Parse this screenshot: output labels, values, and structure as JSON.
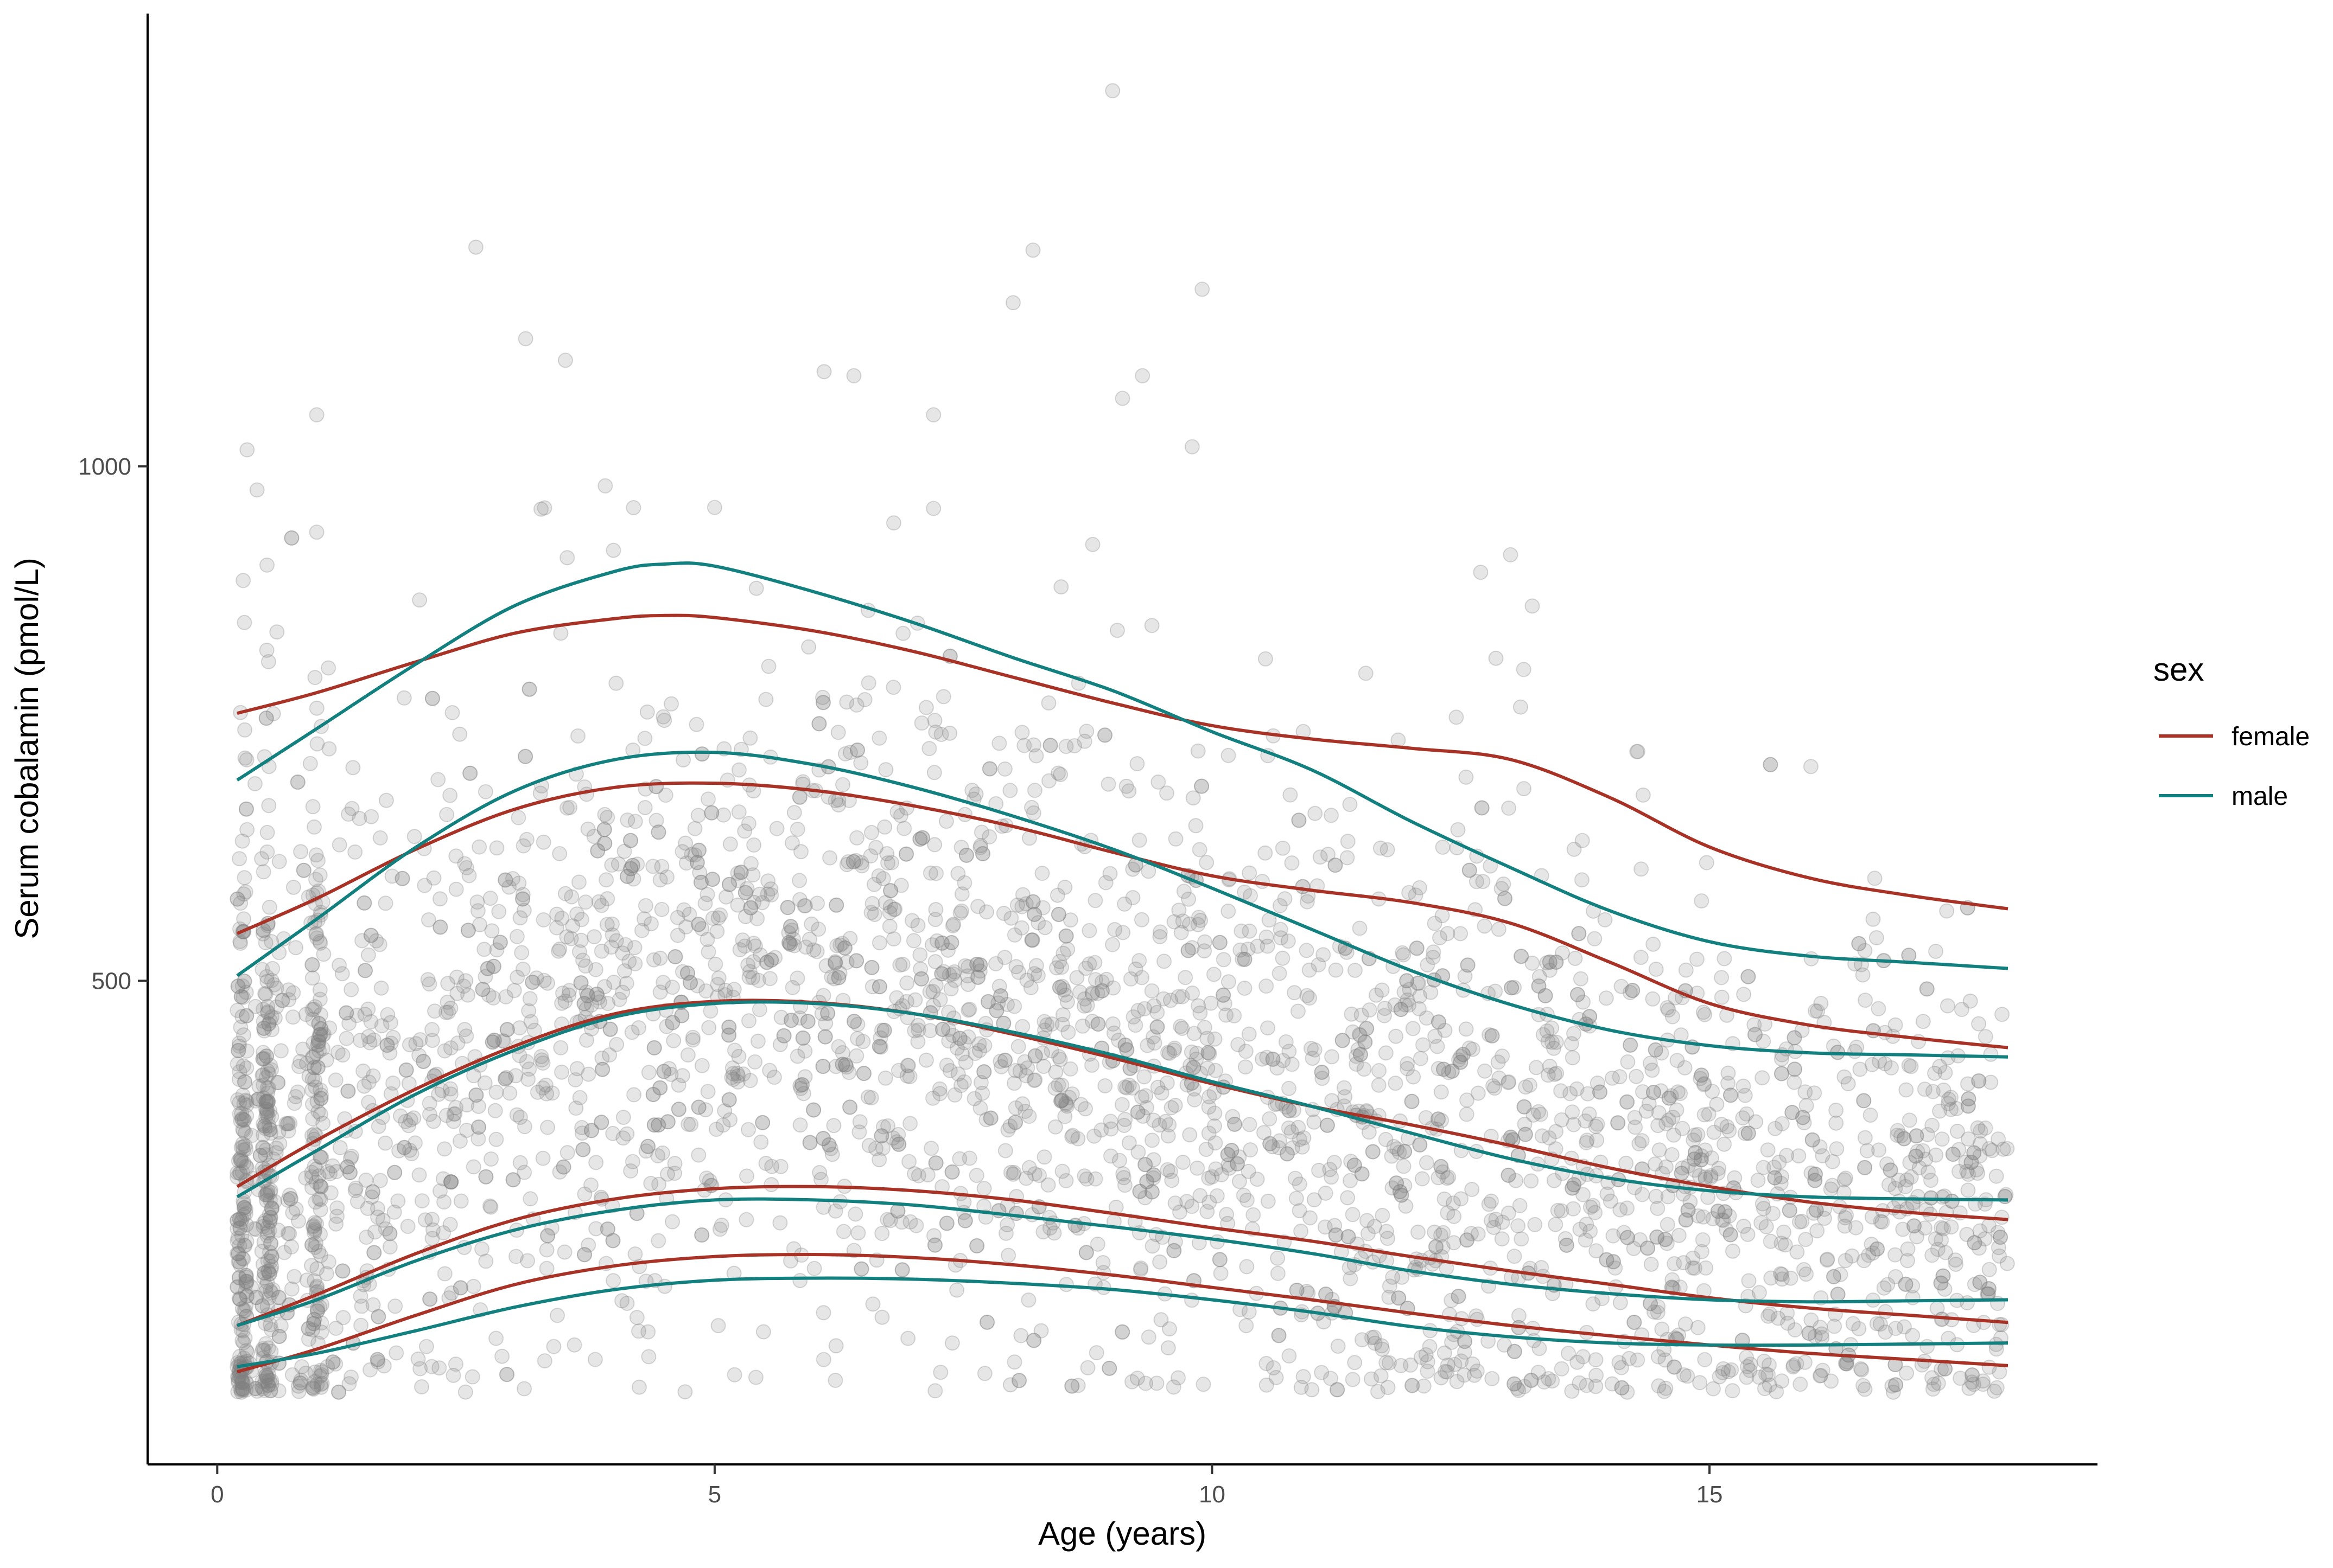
{
  "chart_data": {
    "type": "scatter",
    "xlabel": "Age (years)",
    "ylabel": "Serum cobalamin (pmol/L)",
    "xlim": [
      -0.7,
      18.9
    ],
    "ylim": [
      30,
      1440
    ],
    "x_ticks": [
      0,
      5,
      10,
      15
    ],
    "y_ticks": [
      500,
      1000
    ],
    "grid": false,
    "legend": {
      "title": "sex",
      "placement": "right",
      "entries": [
        {
          "label": "female",
          "color": "#a93226"
        },
        {
          "label": "male",
          "color": "#138080"
        }
      ]
    },
    "points_style": {
      "color": "#808080",
      "opacity": 0.2
    },
    "scatter_summary": {
      "n_points_approx": 3800,
      "x_range": [
        0.2,
        18.0
      ],
      "note": "dense point cloud; outliers listed individually"
    },
    "outlier_points": [
      [
        9.0,
        1365
      ],
      [
        2.6,
        1213
      ],
      [
        8.2,
        1210
      ],
      [
        8.0,
        1159
      ],
      [
        9.9,
        1172
      ],
      [
        3.1,
        1124
      ],
      [
        3.5,
        1103
      ],
      [
        6.1,
        1092
      ],
      [
        6.4,
        1088
      ],
      [
        9.3,
        1088
      ],
      [
        9.1,
        1066
      ],
      [
        7.2,
        1050
      ],
      [
        0.3,
        1016
      ],
      [
        1.0,
        1050
      ],
      [
        9.8,
        1019
      ],
      [
        0.4,
        977
      ],
      [
        3.9,
        981
      ],
      [
        0.5,
        904
      ],
      [
        0.6,
        839
      ],
      [
        1.0,
        936
      ],
      [
        5.0,
        960
      ],
      [
        6.8,
        945
      ],
      [
        7.2,
        959
      ],
      [
        8.8,
        924
      ],
      [
        13.0,
        914
      ],
      [
        12.7,
        897
      ]
    ],
    "series": [
      {
        "name": "female",
        "curve": "97.5th",
        "color": "#a93226",
        "x": [
          0.2,
          1,
          2,
          3,
          4,
          4.5,
          5,
          6,
          7,
          8,
          9,
          10,
          11,
          12,
          13,
          14,
          15,
          16,
          17,
          18
        ],
        "y": [
          760,
          780,
          810,
          838,
          852,
          855,
          853,
          840,
          820,
          795,
          770,
          748,
          735,
          726,
          715,
          678,
          630,
          600,
          583,
          570
        ]
      },
      {
        "name": "female",
        "curve": "90th",
        "color": "#a93226",
        "x": [
          0.2,
          1,
          2,
          3,
          4,
          5,
          6,
          7,
          8,
          9,
          10,
          11,
          12,
          13,
          14,
          15,
          16,
          17,
          18
        ],
        "y": [
          546,
          580,
          628,
          667,
          688,
          692,
          685,
          670,
          650,
          625,
          602,
          588,
          576,
          556,
          518,
          478,
          457,
          445,
          435
        ]
      },
      {
        "name": "female",
        "curve": "50th",
        "color": "#a93226",
        "x": [
          0.2,
          1,
          2,
          3,
          4,
          5,
          6,
          7,
          8,
          9,
          10,
          11,
          12,
          13,
          14,
          15,
          16,
          17,
          18
        ],
        "y": [
          300,
          345,
          395,
          437,
          468,
          480,
          479,
          468,
          448,
          425,
          400,
          378,
          360,
          340,
          318,
          300,
          285,
          275,
          268
        ]
      },
      {
        "name": "female",
        "curve": "10th",
        "color": "#a93226",
        "x": [
          0.2,
          1,
          2,
          3,
          4,
          5,
          6,
          7,
          8,
          9,
          10,
          11,
          12,
          13,
          14,
          15,
          16,
          17,
          18
        ],
        "y": [
          165,
          195,
          235,
          268,
          288,
          298,
          300,
          296,
          287,
          274,
          260,
          247,
          232,
          218,
          205,
          192,
          182,
          175,
          168
        ]
      },
      {
        "name": "female",
        "curve": "2.5th",
        "color": "#a93226",
        "x": [
          0.2,
          1,
          2,
          3,
          4,
          5,
          6,
          7,
          8,
          9,
          10,
          11,
          12,
          13,
          14,
          15,
          16,
          17,
          18
        ],
        "y": [
          120,
          142,
          175,
          205,
          223,
          232,
          234,
          231,
          224,
          214,
          202,
          190,
          177,
          165,
          155,
          146,
          138,
          132,
          126
        ]
      },
      {
        "name": "male",
        "curve": "97.5th",
        "color": "#138080",
        "x": [
          0.2,
          1,
          2,
          3,
          4,
          4.5,
          5,
          6,
          7,
          8,
          9,
          10,
          11,
          12,
          13,
          14,
          15,
          16,
          17,
          18
        ],
        "y": [
          695,
          745,
          808,
          865,
          898,
          905,
          903,
          878,
          848,
          814,
          782,
          742,
          705,
          655,
          610,
          568,
          538,
          524,
          518,
          512
        ]
      },
      {
        "name": "male",
        "curve": "90th",
        "color": "#138080",
        "x": [
          0.2,
          1,
          2,
          3,
          4,
          5,
          6,
          7,
          8,
          9,
          10,
          11,
          12,
          13,
          14,
          15,
          16,
          17,
          18
        ],
        "y": [
          505,
          560,
          630,
          685,
          715,
          722,
          710,
          688,
          660,
          628,
          590,
          550,
          510,
          477,
          452,
          437,
          430,
          428,
          426
        ]
      },
      {
        "name": "male",
        "curve": "50th",
        "color": "#138080",
        "x": [
          0.2,
          1,
          2,
          3,
          4,
          5,
          6,
          7,
          8,
          9,
          10,
          11,
          12,
          13,
          14,
          15,
          16,
          17,
          18
        ],
        "y": [
          290,
          335,
          390,
          433,
          465,
          478,
          478,
          468,
          450,
          428,
          402,
          378,
          352,
          327,
          308,
          296,
          290,
          288,
          287
        ]
      },
      {
        "name": "male",
        "curve": "10th",
        "color": "#138080",
        "x": [
          0.2,
          1,
          2,
          3,
          4,
          5,
          6,
          7,
          8,
          9,
          10,
          11,
          12,
          13,
          14,
          15,
          16,
          17,
          18
        ],
        "y": [
          165,
          190,
          228,
          258,
          277,
          287,
          287,
          282,
          272,
          261,
          249,
          235,
          218,
          205,
          196,
          190,
          188,
          189,
          190
        ]
      },
      {
        "name": "male",
        "curve": "2.5th",
        "color": "#138080",
        "x": [
          0.2,
          1,
          2,
          3,
          4,
          5,
          6,
          7,
          8,
          9,
          10,
          11,
          12,
          13,
          14,
          15,
          16,
          17,
          18
        ],
        "y": [
          125,
          138,
          160,
          183,
          200,
          209,
          211,
          210,
          206,
          200,
          190,
          178,
          164,
          154,
          148,
          146,
          146,
          147,
          148
        ]
      }
    ]
  }
}
